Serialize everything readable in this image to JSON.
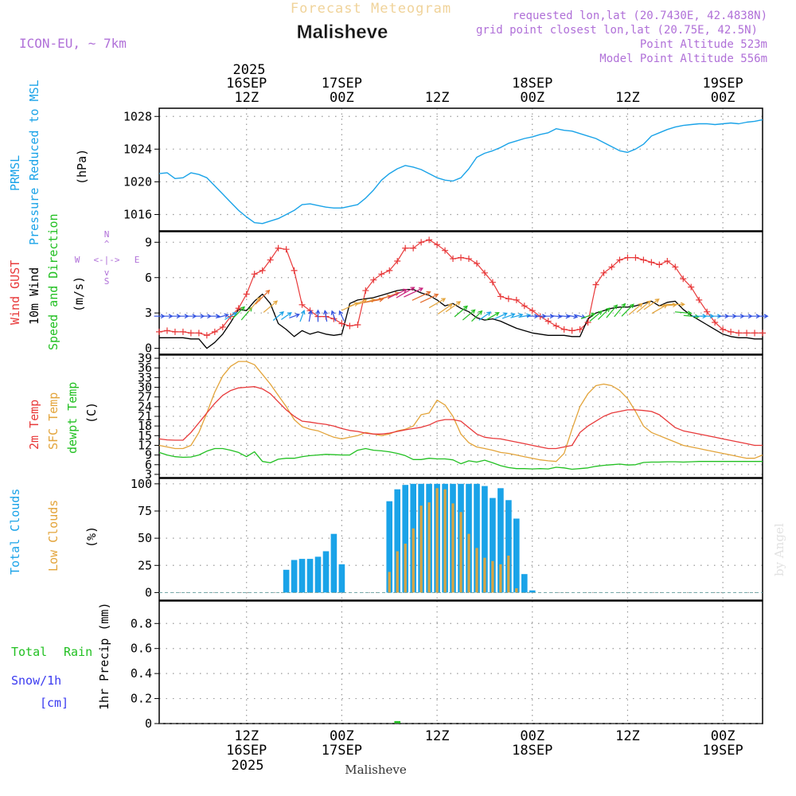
{
  "header": {
    "title_top": "Forecast Meteogram",
    "location": "Malisheve",
    "model": "ICON-EU, ~ 7km",
    "requested": "requested lon,lat (20.7430E, 42.4838N)",
    "grid_point": "grid point closest lon,lat (20.75E, 42.5N)",
    "point_alt": "Point Altitude 523m",
    "model_alt": "Model Point Altitude 556m",
    "credit": "by Angel",
    "bottom_location": "Malisheve"
  },
  "time_axis": {
    "top_year": "2025",
    "bottom_year": "2025",
    "ticks": [
      {
        "h": 12,
        "hour": "12Z",
        "day": "16SEP"
      },
      {
        "h": 24,
        "hour": "00Z",
        "day": "17SEP"
      },
      {
        "h": 36,
        "hour": "12Z",
        "day": ""
      },
      {
        "h": 48,
        "hour": "00Z",
        "day": "18SEP"
      },
      {
        "h": 60,
        "hour": "12Z",
        "day": ""
      },
      {
        "h": 72,
        "hour": "00Z",
        "day": "19SEP"
      }
    ],
    "range_h": [
      1,
      77
    ]
  },
  "colors": {
    "pressure": "#1aa3e8",
    "gust": "#e8393a",
    "wind": "#000000",
    "t2m": "#e8393a",
    "sfc": "#e3a43a",
    "dew": "#22c022",
    "total_cloud": "#1aa3e8",
    "low_cloud": "#d9a441",
    "rain": "#22c022",
    "snow": "#3a3af0",
    "compass": "#b070d8",
    "grid": "#9a9a9a"
  },
  "panel_labels": {
    "pressure": [
      "PRMSL",
      "Pressure Reduced to MSL"
    ],
    "pressure_unit": "(hPa)",
    "wind": [
      "Wind GUST",
      "10m Wind",
      "Speed and Direction"
    ],
    "wind_unit": "(m/s)",
    "compass": {
      "n": "N",
      "s": "S",
      "w": "W",
      "e": "E",
      "arrows": "<-|->",
      "v_up": "^",
      "v_down": "v"
    },
    "temp": [
      "2m Temp",
      "SFC Temp",
      "dewpt Temp"
    ],
    "temp_unit": "(C)",
    "cloud": [
      "Total Clouds",
      "Low Clouds"
    ],
    "cloud_unit": "(%)",
    "precip_left": [
      "Total",
      "Rain",
      "Snow/1h",
      "[cm]"
    ],
    "precip_unit": "1hr Precip (mm)"
  },
  "chart_data": [
    {
      "type": "line",
      "title": "PRMSL Pressure Reduced to MSL",
      "ylabel": "hPa",
      "ylim": [
        1014,
        1029
      ],
      "yticks": [
        1016,
        1020,
        1024,
        1028
      ],
      "series": [
        {
          "name": "Pressure",
          "x": [
            1,
            2,
            3,
            4,
            5,
            6,
            7,
            8,
            9,
            10,
            11,
            12,
            13,
            14,
            15,
            16,
            17,
            18,
            19,
            20,
            21,
            22,
            23,
            24,
            25,
            26,
            27,
            28,
            29,
            30,
            31,
            32,
            33,
            34,
            35,
            36,
            37,
            38,
            39,
            40,
            41,
            42,
            43,
            44,
            45,
            46,
            47,
            48,
            49,
            50,
            51,
            52,
            53,
            54,
            55,
            56,
            57,
            58,
            59,
            60,
            61,
            62,
            63,
            64,
            65,
            66,
            67,
            68,
            69,
            70,
            71,
            72,
            73,
            74,
            75,
            76,
            77
          ],
          "values": [
            1021.0,
            1021.1,
            1020.4,
            1020.5,
            1021.1,
            1020.9,
            1020.5,
            1019.5,
            1018.5,
            1017.5,
            1016.5,
            1015.7,
            1015.0,
            1014.9,
            1015.2,
            1015.5,
            1016.0,
            1016.5,
            1017.2,
            1017.3,
            1017.1,
            1016.9,
            1016.8,
            1016.8,
            1017.0,
            1017.2,
            1018.0,
            1019.0,
            1020.2,
            1021.0,
            1021.6,
            1022.0,
            1021.8,
            1021.5,
            1021.0,
            1020.5,
            1020.2,
            1020.1,
            1020.5,
            1021.6,
            1023.0,
            1023.5,
            1023.8,
            1024.2,
            1024.7,
            1025.0,
            1025.3,
            1025.5,
            1025.8,
            1026.0,
            1026.5,
            1026.3,
            1026.2,
            1025.9,
            1025.6,
            1025.3,
            1024.8,
            1024.3,
            1023.8,
            1023.6,
            1024.0,
            1024.6,
            1025.6,
            1026.0,
            1026.4,
            1026.7,
            1026.9,
            1027.0,
            1027.1,
            1027.1,
            1027.0,
            1027.1,
            1027.2,
            1027.1,
            1027.3,
            1027.4,
            1027.6
          ]
        }
      ]
    },
    {
      "type": "line",
      "title": "Wind GUST / 10m Wind Speed and Direction",
      "ylabel": "m/s",
      "ylim": [
        -0.5,
        9.9
      ],
      "yticks": [
        0,
        3,
        6,
        9
      ],
      "series": [
        {
          "name": "Wind GUST",
          "values": [
            1.4,
            1.5,
            1.4,
            1.4,
            1.3,
            1.3,
            1.1,
            1.4,
            1.8,
            2.7,
            3.4,
            4.6,
            6.3,
            6.6,
            7.5,
            8.5,
            8.4,
            6.6,
            3.7,
            3.2,
            2.7,
            2.7,
            2.5,
            2.1,
            1.9,
            2.0,
            4.9,
            5.8,
            6.3,
            6.6,
            7.4,
            8.5,
            8.5,
            9.0,
            9.2,
            8.8,
            8.3,
            7.6,
            7.7,
            7.6,
            7.2,
            6.4,
            5.6,
            4.4,
            4.2,
            4.1,
            3.6,
            3.2,
            2.7,
            2.3,
            1.9,
            1.6,
            1.5,
            1.6,
            2.2,
            5.4,
            6.4,
            6.9,
            7.5,
            7.7,
            7.7,
            7.5,
            7.3,
            7.1,
            7.4,
            6.9,
            5.9,
            5.2,
            4.1,
            3.1,
            2.2,
            1.6,
            1.4,
            1.3,
            1.3,
            1.3,
            1.3
          ]
        },
        {
          "name": "10m Wind",
          "values": [
            0.9,
            0.9,
            0.9,
            0.9,
            0.8,
            0.8,
            0.0,
            0.5,
            1.2,
            2.2,
            3.3,
            3.2,
            4.0,
            4.6,
            3.8,
            2.1,
            1.6,
            1.0,
            1.5,
            1.2,
            1.4,
            1.2,
            1.1,
            1.2,
            3.8,
            4.1,
            4.2,
            4.3,
            4.5,
            4.7,
            4.9,
            5.0,
            5.0,
            4.7,
            4.5,
            4.1,
            3.6,
            3.8,
            3.4,
            3.1,
            2.6,
            2.4,
            2.5,
            2.3,
            2.0,
            1.7,
            1.5,
            1.3,
            1.2,
            1.1,
            1.1,
            1.1,
            1.0,
            1.0,
            2.5,
            3.0,
            3.2,
            3.4,
            3.5,
            3.5,
            3.6,
            3.8,
            4.0,
            3.6,
            3.9,
            4.0,
            3.3,
            2.8,
            2.4,
            2.0,
            1.6,
            1.2,
            1.0,
            0.9,
            0.9,
            0.8,
            0.8
          ]
        },
        {
          "name": "Wind Direction (deg)",
          "values": [
            270,
            270,
            270,
            270,
            270,
            270,
            270,
            270,
            255,
            240,
            225,
            220,
            220,
            225,
            230,
            230,
            235,
            250,
            200,
            190,
            180,
            170,
            160,
            155,
            245,
            250,
            255,
            260,
            255,
            250,
            245,
            240,
            245,
            245,
            245,
            240,
            235,
            235,
            230,
            230,
            225,
            235,
            240,
            245,
            250,
            255,
            260,
            270,
            270,
            270,
            275,
            275,
            280,
            285,
            250,
            230,
            225,
            220,
            220,
            225,
            230,
            230,
            235,
            240,
            265,
            270,
            275,
            275,
            270,
            270,
            270,
            270,
            270,
            270,
            270,
            270,
            270
          ]
        }
      ]
    },
    {
      "type": "line",
      "title": "2m Temp / SFC Temp / dewpt Temp",
      "ylabel": "C",
      "ylim": [
        2,
        40
      ],
      "yticks": [
        3,
        6,
        9,
        12,
        15,
        18,
        21,
        24,
        27,
        30,
        33,
        36,
        39
      ],
      "series": [
        {
          "name": "2m Temp",
          "values": [
            14.0,
            13.7,
            13.6,
            13.6,
            16.0,
            19.0,
            22.0,
            25.0,
            27.5,
            29.0,
            29.8,
            30.0,
            30.2,
            29.5,
            28.0,
            25.5,
            23.0,
            21.0,
            19.5,
            19.2,
            18.8,
            18.5,
            18.0,
            17.2,
            16.6,
            16.3,
            15.8,
            15.5,
            15.5,
            15.8,
            16.3,
            16.8,
            17.2,
            17.6,
            18.3,
            19.5,
            20.0,
            20.0,
            19.5,
            17.5,
            15.5,
            14.5,
            14.2,
            14.0,
            13.5,
            13.0,
            12.5,
            12.0,
            11.5,
            11.0,
            11.0,
            11.5,
            12.0,
            16.0,
            18.0,
            19.5,
            21.0,
            22.0,
            22.5,
            23.0,
            23.0,
            22.8,
            22.5,
            21.5,
            19.5,
            17.5,
            16.5,
            16.0,
            15.5,
            15.0,
            14.5,
            14.0,
            13.5,
            13.0,
            12.5,
            12.0,
            12.0
          ]
        },
        {
          "name": "SFC Temp",
          "values": [
            12.0,
            11.5,
            11.0,
            11.0,
            12.0,
            16.0,
            22.0,
            28.5,
            33.5,
            36.5,
            38.0,
            38.0,
            37.0,
            34.0,
            31.0,
            27.5,
            24.0,
            20.0,
            17.8,
            17.0,
            16.5,
            15.5,
            14.5,
            14.0,
            14.5,
            15.0,
            16.0,
            15.5,
            15.0,
            15.5,
            16.5,
            17.0,
            18.0,
            21.5,
            22.0,
            26.0,
            24.5,
            21.0,
            15.5,
            12.8,
            11.5,
            11.0,
            10.5,
            9.8,
            9.5,
            9.0,
            8.5,
            8.0,
            7.5,
            7.2,
            7.0,
            9.5,
            17.0,
            24.0,
            28.0,
            30.5,
            31.0,
            30.5,
            29.0,
            26.5,
            22.5,
            18.0,
            16.0,
            15.0,
            14.0,
            13.0,
            12.0,
            11.5,
            11.0,
            10.5,
            10.0,
            9.5,
            9.0,
            8.5,
            8.0,
            8.0,
            9.0
          ]
        },
        {
          "name": "dewpt Temp",
          "values": [
            9.8,
            9.0,
            8.5,
            8.3,
            8.4,
            9.0,
            10.2,
            11.0,
            11.0,
            10.5,
            9.8,
            8.5,
            10.0,
            7.0,
            6.6,
            7.7,
            8.0,
            8.0,
            8.5,
            8.8,
            9.0,
            9.2,
            9.1,
            9.0,
            9.0,
            10.5,
            11.0,
            10.5,
            10.3,
            10.0,
            9.5,
            8.8,
            7.6,
            7.6,
            8.0,
            7.8,
            7.8,
            7.5,
            6.3,
            7.2,
            6.8,
            7.4,
            6.6,
            5.7,
            5.1,
            4.8,
            4.8,
            4.7,
            4.8,
            4.7,
            5.2,
            5.0,
            4.6,
            4.8,
            5.0,
            5.5,
            5.8,
            6.0,
            6.2,
            5.9,
            6.0,
            6.7,
            6.8,
            6.8,
            6.9,
            6.9,
            6.8,
            6.9,
            7.0,
            7.0,
            7.0,
            7.0,
            7.0,
            7.0,
            7.0,
            7.0,
            7.0
          ]
        }
      ]
    },
    {
      "type": "bar",
      "title": "Total Clouds / Low Clouds",
      "ylabel": "%",
      "ylim": [
        -7,
        105
      ],
      "yticks": [
        0,
        25,
        50,
        75,
        100
      ],
      "series": [
        {
          "name": "Total Clouds",
          "values": [
            0,
            0,
            0,
            0,
            0,
            0,
            0,
            0,
            0,
            0,
            0,
            0,
            0,
            0,
            0,
            0,
            21,
            30,
            31,
            31,
            33,
            38,
            54,
            26,
            0,
            0,
            0,
            0,
            0,
            84,
            95,
            99,
            100,
            100,
            100,
            100,
            100,
            100,
            100,
            100,
            100,
            98,
            87,
            96,
            85,
            68,
            17,
            2,
            0,
            0,
            0,
            0,
            0,
            0,
            0,
            0,
            0,
            0,
            0,
            0,
            0,
            0,
            0,
            0,
            0,
            0,
            0,
            0,
            0,
            0,
            0,
            0,
            0,
            0,
            0,
            0,
            0
          ]
        },
        {
          "name": "Low Clouds",
          "values": [
            0,
            0,
            0,
            0,
            0,
            0,
            0,
            0,
            0,
            0,
            0,
            0,
            0,
            0,
            0,
            0,
            0,
            0,
            0,
            0,
            0,
            0,
            0,
            0,
            0,
            0,
            0,
            0,
            0,
            19,
            38,
            45,
            59,
            80,
            83,
            96,
            95,
            82,
            74,
            54,
            41,
            32,
            29,
            26,
            34,
            4,
            0,
            0,
            0,
            0,
            0,
            0,
            0,
            0,
            0,
            0,
            0,
            0,
            0,
            0,
            0,
            0,
            0,
            0,
            0,
            0,
            0,
            0,
            0,
            0,
            0,
            0,
            0,
            0,
            0,
            0,
            0
          ]
        }
      ]
    },
    {
      "type": "bar",
      "title": "1hr Precip",
      "ylabel": "1hr Precip (mm)",
      "ylim": [
        0,
        0.98
      ],
      "yticks": [
        0,
        0.2,
        0.4,
        0.6,
        0.8
      ],
      "series": [
        {
          "name": "Total Rain",
          "values": [
            0,
            0,
            0,
            0,
            0,
            0,
            0,
            0,
            0,
            0,
            0,
            0,
            0,
            0,
            0,
            0,
            0,
            0,
            0,
            0,
            0,
            0,
            0,
            0,
            0,
            0,
            0,
            0,
            0,
            0,
            0.01,
            0,
            0,
            0,
            0,
            0,
            0,
            0,
            0,
            0,
            0,
            0,
            0,
            0,
            0,
            0,
            0,
            0,
            0,
            0,
            0,
            0,
            0,
            0,
            0,
            0,
            0,
            0,
            0,
            0,
            0,
            0,
            0,
            0,
            0,
            0,
            0,
            0,
            0,
            0,
            0,
            0,
            0,
            0,
            0,
            0,
            0
          ]
        },
        {
          "name": "Snow/1h",
          "values": []
        }
      ]
    }
  ]
}
